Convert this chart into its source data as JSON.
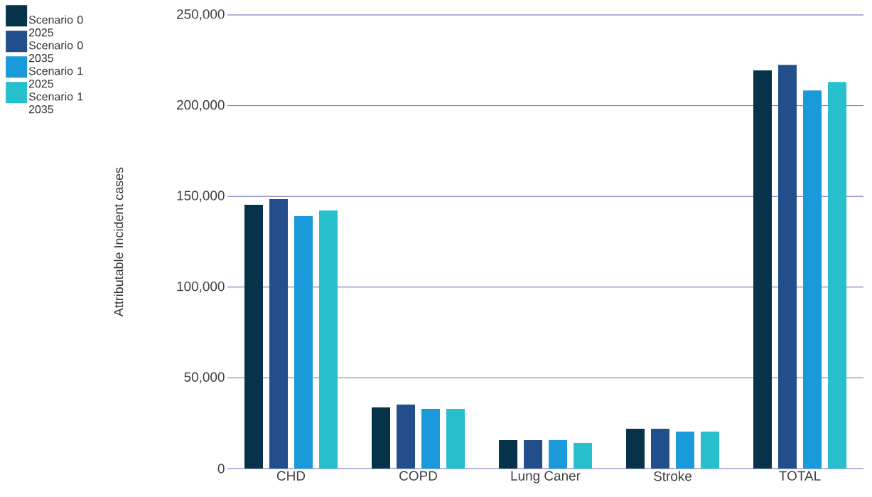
{
  "chart_data": {
    "type": "bar",
    "ylabel": "Attributable Incident cases",
    "categories": [
      "CHD",
      "COPD",
      "Lung Caner",
      "Stroke",
      "TOTAL"
    ],
    "series": [
      {
        "name": "Scenario 0 2025",
        "color": "#06324a",
        "values": [
          145400,
          33700,
          15700,
          21900,
          219400
        ]
      },
      {
        "name": "Scenario 0 2035",
        "color": "#234e8c",
        "values": [
          148500,
          35300,
          15700,
          21900,
          222500
        ]
      },
      {
        "name": "Scenario 1 2025",
        "color": "#1a9ad9",
        "values": [
          139100,
          32900,
          15700,
          20400,
          208400
        ]
      },
      {
        "name": "Scenario 1 2035",
        "color": "#27bfcc",
        "values": [
          142200,
          32900,
          14100,
          20400,
          213100
        ]
      }
    ],
    "ylim": [
      0,
      250000
    ],
    "yticks": [
      0,
      {
        "value": 50000,
        "label": "50,000"
      },
      {
        "value": 100000,
        "label": "100,000"
      },
      {
        "value": 150000,
        "label": "150,000"
      },
      {
        "value": 200000,
        "label": "200,000"
      },
      {
        "value": 250000,
        "label": "250,000"
      }
    ],
    "grid": "y",
    "legend": "top left"
  }
}
